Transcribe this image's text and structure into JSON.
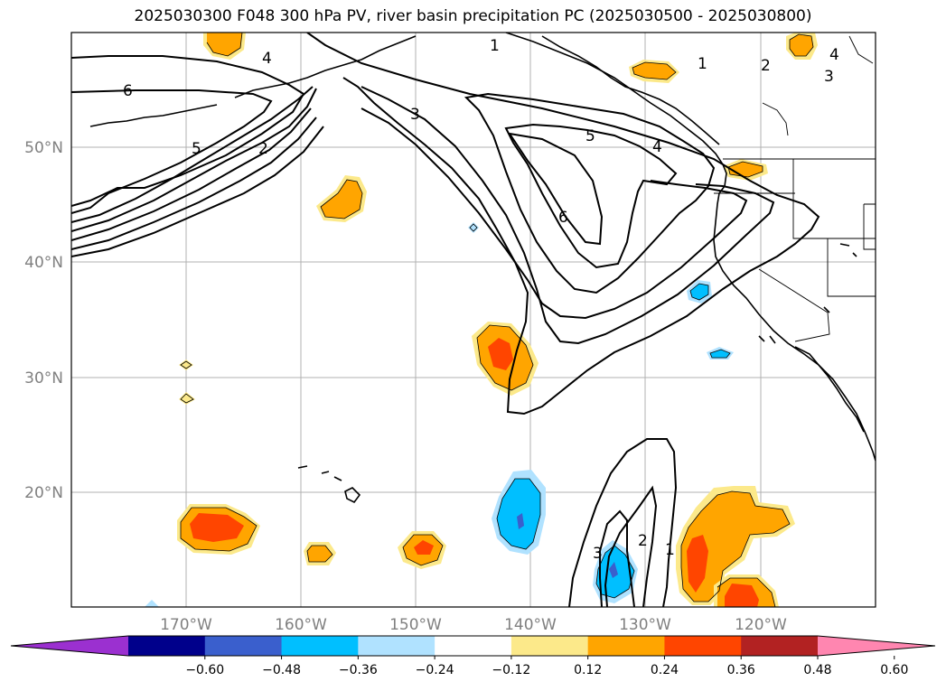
{
  "title": "2025030300 F048 300 hPa PV, river basin precipitation PC (2025030500 - 2025030800)",
  "map": {
    "extent": {
      "lon_min": -180,
      "lon_max": -110,
      "lat_min": 10,
      "lat_max": 60
    },
    "lat_ticks": [
      {
        "value": 50,
        "label": "50°N"
      },
      {
        "value": 40,
        "label": "40°N"
      },
      {
        "value": 30,
        "label": "30°N"
      },
      {
        "value": 20,
        "label": "20°N"
      }
    ],
    "lon_ticks": [
      {
        "value": -170,
        "label": "170°W"
      },
      {
        "value": -160,
        "label": "160°W"
      },
      {
        "value": -150,
        "label": "150°W"
      },
      {
        "value": -140,
        "label": "140°W"
      },
      {
        "value": -130,
        "label": "130°W"
      },
      {
        "value": -120,
        "label": "120°W"
      }
    ],
    "grid": true,
    "contour_labels": [
      "6",
      "5",
      "4",
      "2",
      "1",
      "3",
      "5",
      "6",
      "4",
      "1",
      "2",
      "3",
      "4",
      "3",
      "2",
      "1"
    ]
  },
  "colorbar": {
    "colors": [
      "#9b30d0",
      "#00008b",
      "#3a5fcd",
      "#00bfff",
      "#b0e2ff",
      "#ffffff",
      "#fce98a",
      "#ffa500",
      "#ff4500",
      "#b22222",
      "#ff86b0"
    ],
    "labels": [
      "−0.60",
      "−0.48",
      "−0.36",
      "−0.24",
      "−0.12",
      "0.12",
      "0.24",
      "0.36",
      "0.48",
      "0.60"
    ],
    "extend": "both"
  }
}
